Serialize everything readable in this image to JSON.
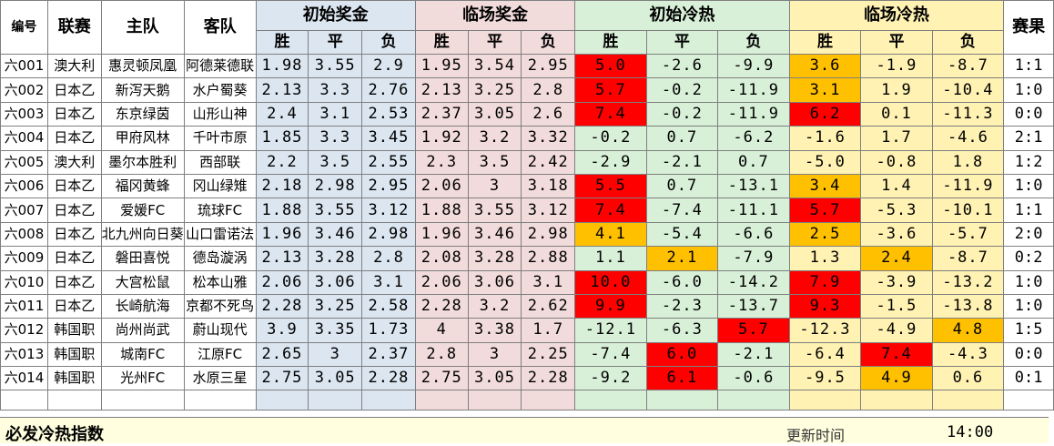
{
  "headers": {
    "id": "编号",
    "league": "联赛",
    "home": "主队",
    "away": "客队",
    "init_bonus": "初始奖金",
    "live_bonus": "临场奖金",
    "init_heat": "初始冷热",
    "live_heat": "临场冷热",
    "result": "赛果",
    "win": "胜",
    "draw": "平",
    "lose": "负"
  },
  "colors": {
    "blue_section": "#dce6f1",
    "pink_section": "#f2dcdb",
    "green_section": "#d8f0d8",
    "yellow_section": "#fff2b3",
    "hot_red": "#ff0000",
    "hot_amber": "#ffc000",
    "footer_bg": "#ffffe0"
  },
  "rows": [
    {
      "id": "六001",
      "league": "澳大利",
      "home": "惠灵顿凤凰",
      "away": "阿德莱德联",
      "ib": [
        "1.98",
        "3.55",
        "2.9"
      ],
      "lb": [
        "1.95",
        "3.54",
        "2.95"
      ],
      "ih": [
        "5.0",
        "-2.6",
        "-9.9"
      ],
      "lh": [
        "3.6",
        "-1.9",
        "-8.7"
      ],
      "ih_hot": [
        0
      ],
      "lh_hot": [
        0
      ],
      "result": "1:1"
    },
    {
      "id": "六002",
      "league": "日本乙",
      "home": "新泻天鹅",
      "away": "水户蜀葵",
      "ib": [
        "2.13",
        "3.3",
        "2.76"
      ],
      "lb": [
        "2.13",
        "3.25",
        "2.8"
      ],
      "ih": [
        "5.7",
        "-0.2",
        "-11.9"
      ],
      "lh": [
        "3.1",
        "1.9",
        "-10.4"
      ],
      "ih_hot": [
        0
      ],
      "lh_hot": [
        0
      ],
      "result": "1:0"
    },
    {
      "id": "六003",
      "league": "日本乙",
      "home": "东京绿茵",
      "away": "山形山神",
      "ib": [
        "2.4",
        "3.1",
        "2.53"
      ],
      "lb": [
        "2.37",
        "3.05",
        "2.6"
      ],
      "ih": [
        "7.4",
        "-0.2",
        "-11.9"
      ],
      "lh": [
        "6.2",
        "0.1",
        "-11.3"
      ],
      "ih_hot": [
        0
      ],
      "lh_hot": [
        0
      ],
      "lh_red": true,
      "result": "0:0"
    },
    {
      "id": "六004",
      "league": "日本乙",
      "home": "甲府风林",
      "away": "千叶市原",
      "ib": [
        "1.85",
        "3.3",
        "3.45"
      ],
      "lb": [
        "1.92",
        "3.2",
        "3.32"
      ],
      "ih": [
        "-0.2",
        "0.7",
        "-6.2"
      ],
      "lh": [
        "-1.6",
        "1.7",
        "-4.6"
      ],
      "ih_hot": [],
      "lh_hot": [],
      "result": "2:1"
    },
    {
      "id": "六005",
      "league": "澳大利",
      "home": "墨尔本胜利",
      "away": "西部联",
      "ib": [
        "2.2",
        "3.5",
        "2.55"
      ],
      "lb": [
        "2.3",
        "3.5",
        "2.42"
      ],
      "ih": [
        "-2.9",
        "-2.1",
        "0.7"
      ],
      "lh": [
        "-5.0",
        "-0.8",
        "1.8"
      ],
      "ih_hot": [],
      "lh_hot": [],
      "result": "1:2"
    },
    {
      "id": "六006",
      "league": "日本乙",
      "home": "福冈黄蜂",
      "away": "冈山绿雉",
      "ib": [
        "2.18",
        "2.98",
        "2.95"
      ],
      "lb": [
        "2.06",
        "3",
        "3.18"
      ],
      "ih": [
        "5.5",
        "0.7",
        "-13.1"
      ],
      "lh": [
        "3.4",
        "1.4",
        "-11.9"
      ],
      "ih_hot": [
        0
      ],
      "lh_hot": [
        0
      ],
      "result": "1:0"
    },
    {
      "id": "六007",
      "league": "日本乙",
      "home": "爱媛FC",
      "away": "琉球FC",
      "ib": [
        "1.88",
        "3.55",
        "3.12"
      ],
      "lb": [
        "1.88",
        "3.55",
        "3.12"
      ],
      "ih": [
        "7.4",
        "-7.4",
        "-11.1"
      ],
      "lh": [
        "5.7",
        "-5.3",
        "-10.1"
      ],
      "ih_hot": [
        0
      ],
      "lh_hot": [
        0
      ],
      "lh_red": true,
      "result": "1:1"
    },
    {
      "id": "六008",
      "league": "日本乙",
      "home": "北九州向日葵",
      "away": "山口雷诺法",
      "ib": [
        "1.96",
        "3.46",
        "2.98"
      ],
      "lb": [
        "1.96",
        "3.46",
        "2.98"
      ],
      "ih": [
        "4.1",
        "-5.4",
        "-6.6"
      ],
      "lh": [
        "2.5",
        "-3.6",
        "-5.7"
      ],
      "ih_hot": [
        0
      ],
      "ih_amber": true,
      "lh_hot": [
        0
      ],
      "result": "2:0"
    },
    {
      "id": "六009",
      "league": "日本乙",
      "home": "磐田喜悦",
      "away": "德岛漩涡",
      "ib": [
        "2.13",
        "3.28",
        "2.8"
      ],
      "lb": [
        "2.08",
        "3.28",
        "2.88"
      ],
      "ih": [
        "1.1",
        "2.1",
        "-7.9"
      ],
      "lh": [
        "1.3",
        "2.4",
        "-8.7"
      ],
      "ih_hot": [
        1
      ],
      "ih_amber": true,
      "lh_hot": [
        1
      ],
      "result": "0:2"
    },
    {
      "id": "六010",
      "league": "日本乙",
      "home": "大宫松鼠",
      "away": "松本山雅",
      "ib": [
        "2.06",
        "3.06",
        "3.1"
      ],
      "lb": [
        "2.06",
        "3.06",
        "3.1"
      ],
      "ih": [
        "10.0",
        "-6.0",
        "-14.2"
      ],
      "lh": [
        "7.9",
        "-3.9",
        "-13.2"
      ],
      "ih_hot": [
        0
      ],
      "lh_hot": [
        0
      ],
      "lh_red": true,
      "result": "1:0"
    },
    {
      "id": "六011",
      "league": "日本乙",
      "home": "长崎航海",
      "away": "京都不死鸟",
      "ib": [
        "2.28",
        "3.25",
        "2.58"
      ],
      "lb": [
        "2.28",
        "3.2",
        "2.62"
      ],
      "ih": [
        "9.9",
        "-2.3",
        "-13.7"
      ],
      "lh": [
        "9.3",
        "-1.5",
        "-13.8"
      ],
      "ih_hot": [
        0
      ],
      "lh_hot": [
        0
      ],
      "lh_red": true,
      "result": "1:0"
    },
    {
      "id": "六012",
      "league": "韩国职",
      "home": "尚州尚武",
      "away": "蔚山现代",
      "ib": [
        "3.9",
        "3.35",
        "1.73"
      ],
      "lb": [
        "4",
        "3.38",
        "1.7"
      ],
      "ih": [
        "-12.1",
        "-6.3",
        "5.7"
      ],
      "lh": [
        "-12.3",
        "-4.9",
        "4.8"
      ],
      "ih_hot": [
        2
      ],
      "lh_hot": [
        2
      ],
      "result": "1:5"
    },
    {
      "id": "六013",
      "league": "韩国职",
      "home": "城南FC",
      "away": "江原FC",
      "ib": [
        "2.65",
        "3",
        "2.37"
      ],
      "lb": [
        "2.8",
        "3",
        "2.25"
      ],
      "ih": [
        "-7.4",
        "6.0",
        "-2.1"
      ],
      "lh": [
        "-6.4",
        "7.4",
        "-4.3"
      ],
      "ih_hot": [
        1
      ],
      "lh_hot": [
        1
      ],
      "lh_red": true,
      "result": "0:0"
    },
    {
      "id": "六014",
      "league": "韩国职",
      "home": "光州FC",
      "away": "水原三星",
      "ib": [
        "2.75",
        "3.05",
        "2.28"
      ],
      "lb": [
        "2.75",
        "3.05",
        "2.28"
      ],
      "ih": [
        "-9.2",
        "6.1",
        "-0.6"
      ],
      "lh": [
        "-9.5",
        "4.9",
        "0.6"
      ],
      "ih_hot": [
        1
      ],
      "lh_hot": [
        1
      ],
      "result": "0:1"
    }
  ],
  "footer": {
    "title": "必发冷热指数",
    "update_label": "更新时间",
    "update_time": "14:00"
  }
}
